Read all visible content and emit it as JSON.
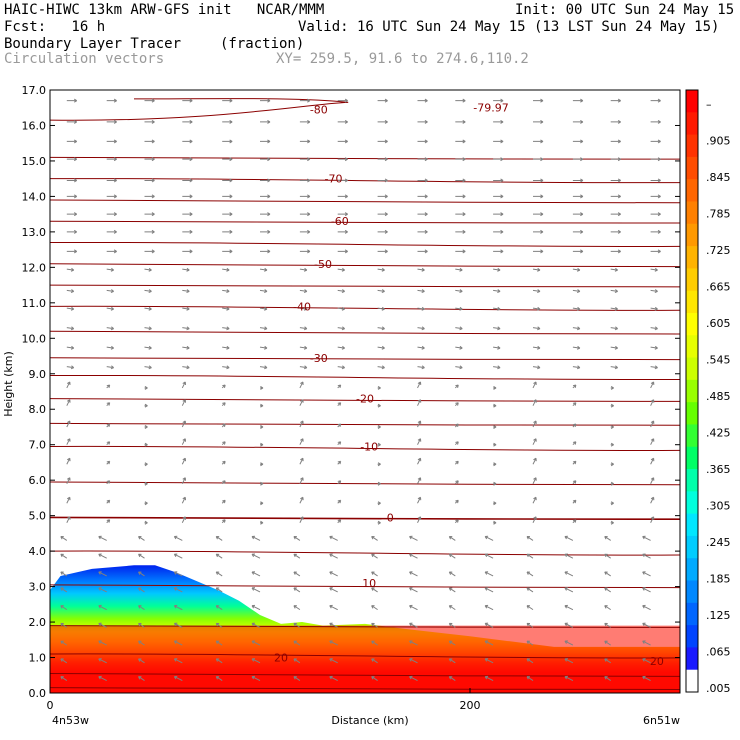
{
  "header": {
    "line1_left": "HAIC-HIWC 13km ARW-GFS init   NCAR/MMM",
    "line1_right": "Init: 00 UTC Sun 24 May 15",
    "line2_left": "Fcst:   16 h",
    "line2_right": "Valid: 16 UTC Sun 24 May 15 (13 LST Sun 24 May 15)",
    "field_name": "Boundary Layer Tracer",
    "field_units": "(fraction)",
    "overlay_name": "Circulation vectors",
    "xy_range": "XY= 259.5, 91.6 to 274.6,110.2"
  },
  "colors": {
    "contour": "#8b0000",
    "vector": "#808080",
    "colorbar": [
      "#ff0000",
      "#ff1a00",
      "#ff3300",
      "#ff4d00",
      "#ff6600",
      "#ff8000",
      "#ff9900",
      "#ffb300",
      "#ffcc00",
      "#ffe600",
      "#ffff00",
      "#e6ff00",
      "#ccff00",
      "#99ff00",
      "#66ff00",
      "#33ff33",
      "#00ff66",
      "#00ffaa",
      "#00ffdd",
      "#00e6ff",
      "#00ccff",
      "#00aaff",
      "#0088ff",
      "#0066ff",
      "#0044ff",
      "#1a1aff",
      "#ffffff"
    ]
  },
  "chart_data": {
    "type": "heatmap",
    "title": "Boundary Layer Tracer",
    "units": "(fraction)",
    "xlabel": "Distance (km)",
    "ylabel": "Height (km)",
    "xlim": [
      0,
      300
    ],
    "ylim": [
      0,
      17
    ],
    "x_ticks": [
      0,
      200
    ],
    "x_tick_labels": [
      "0",
      "200"
    ],
    "x_end_labels": {
      "left": "4n53w",
      "right": "6n51w"
    },
    "y_ticks": [
      0,
      1,
      2,
      3,
      4,
      5,
      6,
      7,
      8,
      9,
      10,
      11,
      12,
      13,
      14,
      15,
      16,
      17
    ],
    "y_tick_labels": [
      "0.0",
      "1.0",
      "2.0",
      "3.0",
      "4.0",
      "5.0",
      "6.0",
      "7.0",
      "8.0",
      "9.0",
      "10.0",
      "11.0",
      "12.0",
      "13.0",
      "14.0",
      "15.0",
      "16.0",
      "17.0"
    ],
    "colorbar_labels": [
      ".005",
      ".065",
      ".125",
      ".185",
      ".245",
      ".305",
      ".365",
      ".425",
      ".485",
      ".545",
      ".605",
      ".665",
      ".725",
      ".785",
      ".845",
      ".905",
      "–"
    ],
    "tracer_top_km": {
      "x": [
        0,
        5,
        20,
        40,
        50,
        60,
        80,
        90,
        100,
        110,
        120,
        130,
        150,
        170,
        200,
        240,
        260,
        300
      ],
      "y": [
        2.9,
        3.3,
        3.5,
        3.6,
        3.6,
        3.4,
        2.9,
        2.6,
        2.2,
        1.95,
        2.0,
        1.9,
        1.95,
        1.8,
        1.6,
        1.3,
        1.3,
        1.3
      ]
    },
    "isotherm_labels": [
      {
        "value": "-80",
        "x": 128,
        "y": 16.45
      },
      {
        "value": "-79.97",
        "x": 210,
        "y": 16.5
      },
      {
        "value": "-70",
        "x": 135,
        "y": 14.5
      },
      {
        "value": "-60",
        "x": 138,
        "y": 13.3
      },
      {
        "value": "-50",
        "x": 130,
        "y": 12.1
      },
      {
        "value": "-40",
        "x": 120,
        "y": 10.9
      },
      {
        "value": "-30",
        "x": 128,
        "y": 9.45
      },
      {
        "value": "-20",
        "x": 150,
        "y": 8.3
      },
      {
        "value": "-10",
        "x": 152,
        "y": 6.95
      },
      {
        "value": "0",
        "x": 162,
        "y": 4.95
      },
      {
        "value": "10",
        "x": 152,
        "y": 3.1
      },
      {
        "value": "20",
        "x": 110,
        "y": 1.0
      },
      {
        "value": "20",
        "x": 289,
        "y": 0.9
      }
    ],
    "isotherm_lines_km": [
      0.15,
      0.55,
      1.1,
      1.9,
      3.05,
      4.0,
      4.95,
      5.95,
      6.95,
      7.6,
      8.3,
      8.95,
      9.45,
      10.2,
      10.9,
      11.5,
      12.1,
      12.7,
      13.3,
      13.9,
      14.5,
      15.1
    ],
    "vector_rows_km": [
      0.35,
      0.85,
      1.35,
      1.85,
      2.35,
      2.85,
      3.3,
      3.8,
      4.3,
      4.8,
      5.35,
      5.9,
      6.45,
      7.0,
      7.5,
      8.1,
      8.6,
      9.2,
      9.75,
      10.3,
      10.85,
      11.35,
      11.95,
      12.45,
      13.0,
      13.5,
      14.0,
      14.45,
      15.05,
      15.55,
      16.1,
      16.7
    ],
    "vector_cols_km": [
      8,
      27,
      45,
      63,
      82,
      100,
      119,
      137,
      156,
      175,
      193,
      211,
      230,
      249,
      267,
      286
    ]
  }
}
